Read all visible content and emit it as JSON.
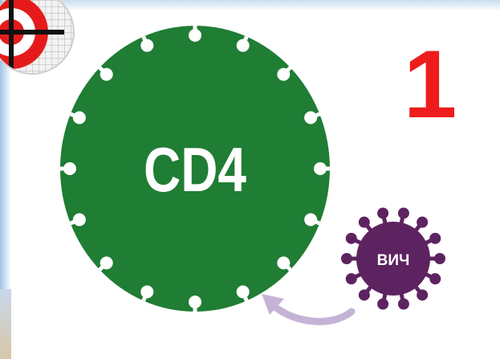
{
  "cell": {
    "label": "CD4"
  },
  "virus": {
    "label": "ВИЧ"
  },
  "step": {
    "number": "1"
  }
}
